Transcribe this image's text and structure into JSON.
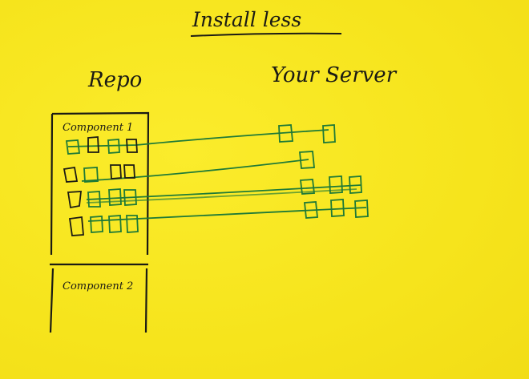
{
  "title": "Install less",
  "headings": {
    "repo": "Repo",
    "server": "Your Server"
  },
  "components": [
    "Component 1",
    "Component 2"
  ],
  "colors": {
    "background": "#f7e51f",
    "ink": "#1b1b14",
    "green": "#1f7a37"
  },
  "repo_rows": [
    {
      "name": "row-1",
      "boxes": 4
    },
    {
      "name": "row-2",
      "boxes": 4
    },
    {
      "name": "row-3",
      "boxes": 4
    },
    {
      "name": "row-4",
      "boxes": 4
    }
  ],
  "server_rows": [
    {
      "name": "server-row-1",
      "boxes": 2
    },
    {
      "name": "server-row-2",
      "boxes": 1
    },
    {
      "name": "server-row-3",
      "boxes": 3
    },
    {
      "name": "server-row-4",
      "boxes": 3
    }
  ]
}
